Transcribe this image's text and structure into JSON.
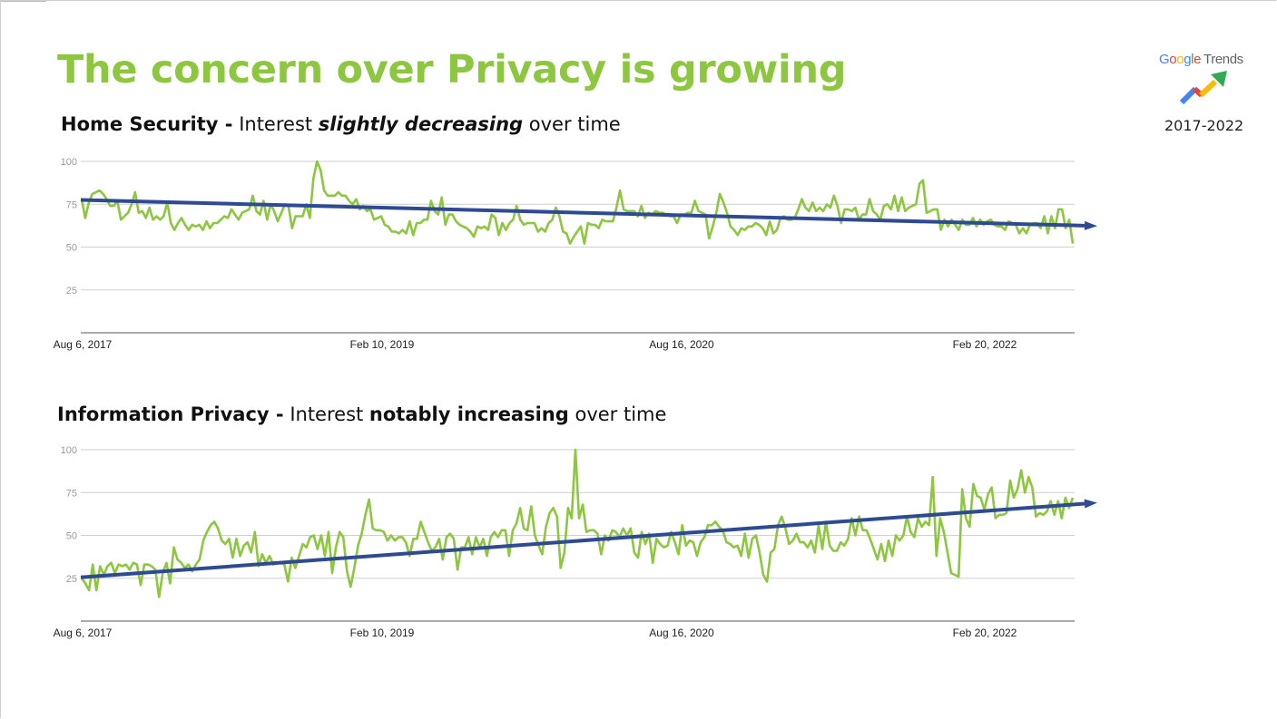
{
  "title": "The concern over Privacy is growing",
  "brand": {
    "google": [
      "G",
      "o",
      "o",
      "g",
      "l",
      "e"
    ],
    "trends": "Trends",
    "years": "2017-2022"
  },
  "colors": {
    "accent": "#8dc63f",
    "trend": "#2e4a93",
    "grid": "#cfcfcf",
    "axis": "#9a9a9a"
  },
  "sections": [
    {
      "heading_bold": "Home Security -",
      "heading_pre": " Interest ",
      "heading_emph": "slightly decreasing",
      "heading_post": " over time"
    },
    {
      "heading_bold": "Information Privacy -",
      "heading_pre": " Interest ",
      "heading_emph": "notably increasing",
      "heading_post": " over time"
    }
  ],
  "chart_data": [
    {
      "type": "line",
      "title": "Home Security - Interest slightly decreasing over time",
      "x_start": "2017-08-06",
      "x_end": "2022-07-31",
      "frequency": "weekly",
      "xticks": [
        "Aug 6, 2017",
        "Feb 10, 2019",
        "Aug 16, 2020",
        "Feb 20, 2022"
      ],
      "yticks": [
        25,
        50,
        75,
        100
      ],
      "ylim": [
        0,
        100
      ],
      "series": [
        {
          "name": "Home Security",
          "values": [
            78,
            67,
            76,
            81,
            82,
            83,
            81,
            78,
            74,
            74,
            77,
            66,
            68,
            70,
            75,
            82,
            70,
            71,
            67,
            73,
            66,
            68,
            66,
            68,
            76,
            64,
            60,
            64,
            67,
            63,
            60,
            63,
            62,
            63,
            60,
            65,
            61,
            64,
            64,
            66,
            68,
            67,
            72,
            69,
            66,
            70,
            71,
            72,
            80,
            71,
            69,
            77,
            66,
            75,
            71,
            65,
            70,
            75,
            74,
            61,
            68,
            68,
            68,
            75,
            67,
            90,
            100,
            95,
            83,
            80,
            80,
            80,
            82,
            80,
            80,
            77,
            75,
            78,
            72,
            74,
            71,
            72,
            66,
            67,
            68,
            63,
            62,
            59,
            59,
            58,
            60,
            58,
            65,
            57,
            64,
            64,
            66,
            66,
            77,
            71,
            69,
            79,
            63,
            69,
            69,
            65,
            63,
            62,
            61,
            59,
            56,
            62,
            61,
            62,
            60,
            69,
            67,
            57,
            64,
            60,
            64,
            66,
            74,
            66,
            63,
            64,
            64,
            64,
            59,
            61,
            59,
            64,
            66,
            73,
            68,
            59,
            58,
            52,
            56,
            59,
            62,
            52,
            64,
            63,
            63,
            61,
            66,
            65,
            65,
            65,
            73,
            83,
            72,
            71,
            71,
            71,
            68,
            74,
            67,
            70,
            69,
            71,
            70,
            70,
            69,
            68,
            68,
            64,
            69,
            69,
            70,
            70,
            77,
            71,
            70,
            69,
            55,
            62,
            70,
            81,
            76,
            70,
            62,
            60,
            57,
            61,
            60,
            62,
            62,
            64,
            63,
            61,
            57,
            65,
            58,
            60,
            67,
            68,
            66,
            66,
            67,
            72,
            78,
            73,
            71,
            76,
            71,
            73,
            71,
            75,
            73,
            80,
            74,
            64,
            72,
            72,
            71,
            73,
            66,
            69,
            69,
            78,
            71,
            69,
            66,
            74,
            75,
            72,
            80,
            71,
            79,
            71,
            73,
            74,
            75,
            87,
            89,
            70,
            71,
            72,
            72,
            60,
            66,
            62,
            66,
            63,
            60,
            66,
            63,
            63,
            67,
            62,
            66,
            63,
            65,
            66,
            63,
            62,
            62,
            60,
            65,
            64,
            63,
            58,
            61,
            58,
            63,
            64,
            64,
            61,
            68,
            58,
            68,
            61,
            72,
            72,
            61,
            66,
            52
          ]
        },
        {
          "name": "Trend",
          "values": [
            77.5,
            62.5
          ],
          "style": "arrow"
        }
      ]
    },
    {
      "type": "line",
      "title": "Information Privacy - Interest notably increasing over time",
      "x_start": "2017-08-06",
      "x_end": "2022-07-31",
      "frequency": "weekly",
      "xticks": [
        "Aug 6, 2017",
        "Feb 10, 2019",
        "Aug 16, 2020",
        "Feb 20, 2022"
      ],
      "yticks": [
        25,
        50,
        75,
        100
      ],
      "ylim": [
        0,
        100
      ],
      "series": [
        {
          "name": "Information Privacy",
          "values": [
            25,
            22,
            18,
            33,
            18,
            32,
            27,
            32,
            34,
            28,
            33,
            32,
            33,
            30,
            34,
            33,
            21,
            33,
            33,
            32,
            30,
            14,
            28,
            34,
            22,
            43,
            36,
            34,
            31,
            33,
            29,
            33,
            36,
            47,
            52,
            56,
            58,
            54,
            47,
            45,
            48,
            37,
            48,
            38,
            44,
            46,
            40,
            52,
            32,
            39,
            34,
            38,
            33,
            34,
            34,
            33,
            23,
            37,
            31,
            38,
            45,
            43,
            49,
            50,
            42,
            50,
            38,
            52,
            28,
            43,
            52,
            49,
            29,
            20,
            31,
            44,
            51,
            62,
            71,
            54,
            53,
            53,
            52,
            47,
            50,
            47,
            49,
            49,
            46,
            38,
            48,
            48,
            58,
            52,
            46,
            41,
            43,
            48,
            36,
            49,
            51,
            48,
            30,
            43,
            43,
            49,
            39,
            49,
            43,
            48,
            38,
            49,
            52,
            49,
            53,
            53,
            38,
            53,
            57,
            66,
            54,
            53,
            67,
            50,
            44,
            39,
            55,
            63,
            66,
            61,
            31,
            40,
            66,
            60,
            100,
            60,
            68,
            52,
            53,
            53,
            51,
            39,
            50,
            47,
            53,
            52,
            49,
            54,
            50,
            54,
            40,
            37,
            52,
            45,
            51,
            34,
            48,
            45,
            43,
            44,
            52,
            46,
            39,
            56,
            44,
            47,
            46,
            38,
            46,
            49,
            56,
            56,
            58,
            55,
            53,
            46,
            45,
            43,
            44,
            38,
            51,
            37,
            48,
            50,
            40,
            27,
            23,
            40,
            42,
            56,
            61,
            54,
            45,
            47,
            51,
            46,
            46,
            43,
            47,
            40,
            56,
            42,
            58,
            44,
            41,
            41,
            46,
            44,
            48,
            60,
            50,
            61,
            53,
            53,
            48,
            42,
            36,
            45,
            35,
            47,
            38,
            50,
            47,
            50,
            61,
            52,
            49,
            60,
            55,
            58,
            56,
            84,
            38,
            60,
            52,
            40,
            28,
            27,
            26,
            77,
            60,
            55,
            80,
            73,
            72,
            65,
            74,
            78,
            60,
            62,
            62,
            63,
            82,
            72,
            77,
            88,
            75,
            84,
            78,
            61,
            63,
            62,
            64,
            70,
            62,
            70,
            60,
            72,
            66,
            72
          ]
        },
        {
          "name": "Trend",
          "values": [
            25.5,
            68.5
          ],
          "style": "arrow"
        }
      ]
    }
  ]
}
